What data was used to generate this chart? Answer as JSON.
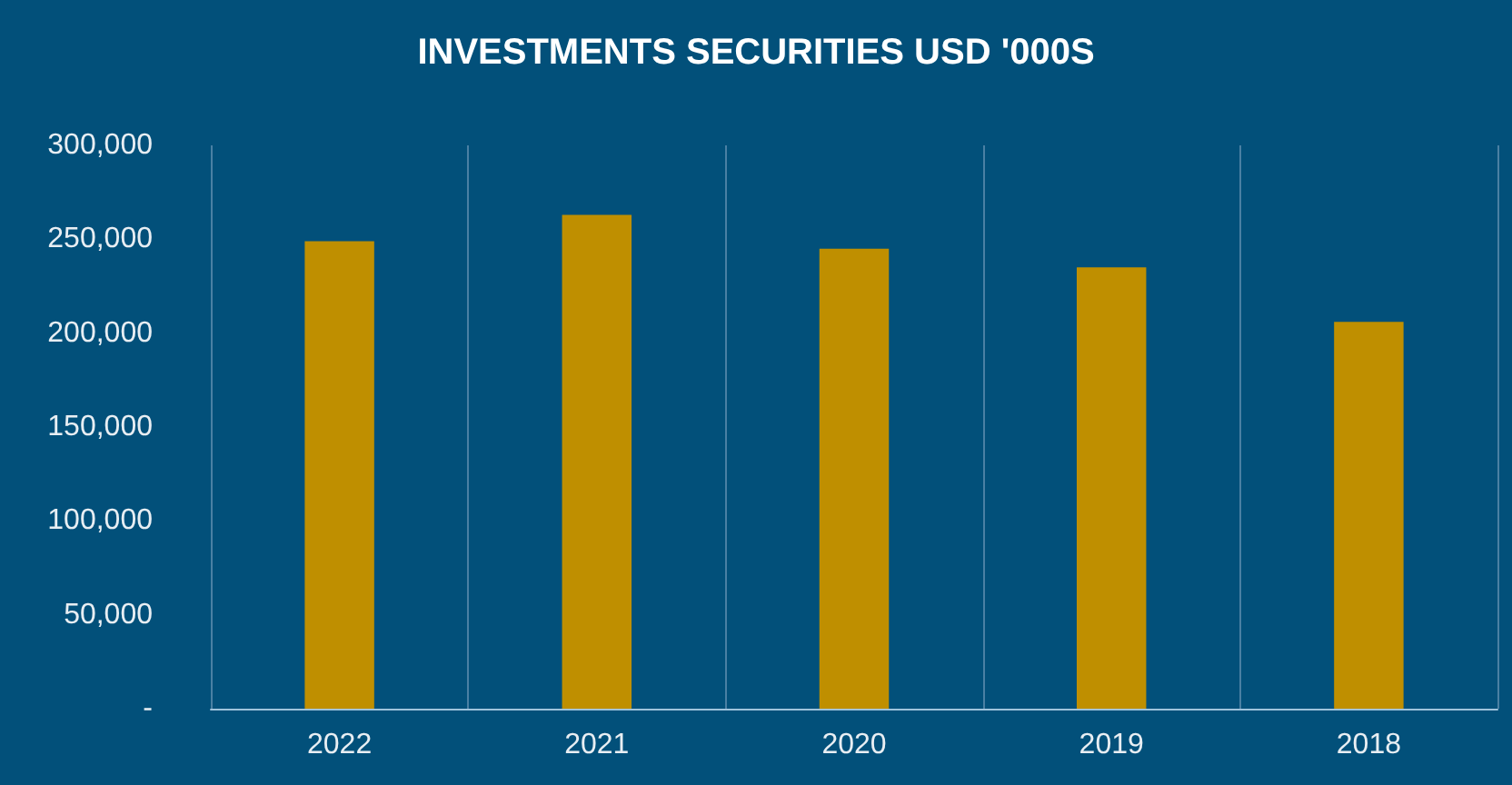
{
  "chart_data": {
    "type": "bar",
    "title": "INVESTMENTS SECURITIES USD '000S",
    "categories": [
      "2022",
      "2021",
      "2020",
      "2019",
      "2018"
    ],
    "values": [
      249000,
      263000,
      245000,
      235000,
      206000
    ],
    "color": "#bf8f00",
    "ylim": [
      0,
      300000
    ],
    "yticks": [
      {
        "value": 0,
        "label": "-"
      },
      {
        "value": 50000,
        "label": "50,000"
      },
      {
        "value": 100000,
        "label": "100,000"
      },
      {
        "value": 150000,
        "label": "150,000"
      },
      {
        "value": 200000,
        "label": "200,000"
      },
      {
        "value": 250000,
        "label": "250,000"
      },
      {
        "value": 300000,
        "label": "300,000"
      }
    ],
    "grid": "x"
  }
}
